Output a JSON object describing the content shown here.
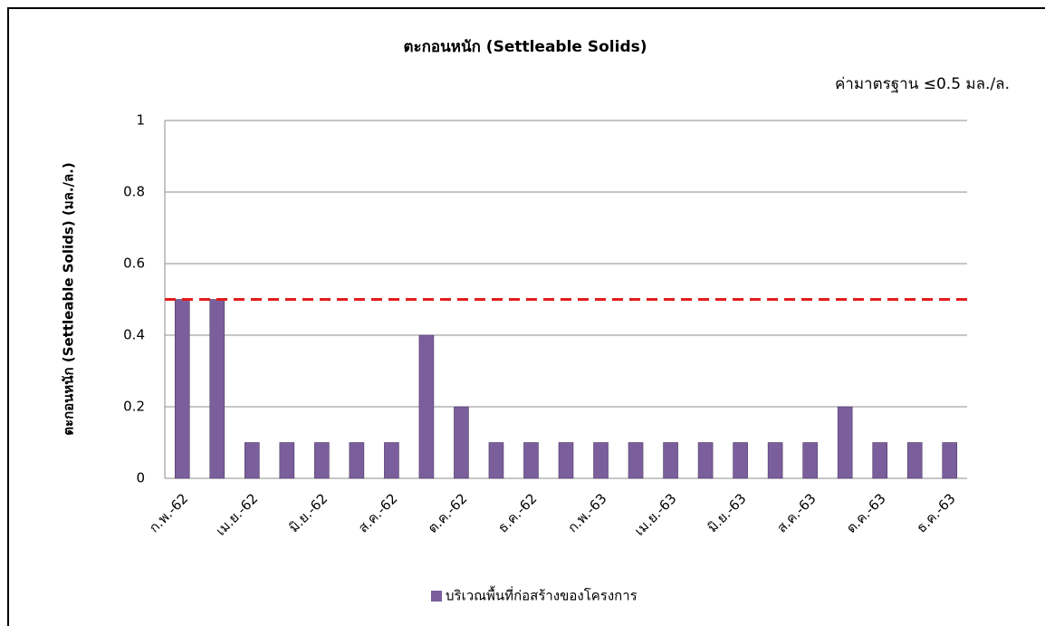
{
  "chart_data": {
    "type": "bar",
    "title": "ตะกอนหนัก (Settleable Solids)",
    "annotation": "ค่ามาตรฐาน ≤0.5 มล./ล.",
    "ylabel": "ตะกอนหนัก (Settleable Solids) (มล./ล.)",
    "categories": [
      "ก.พ.-62",
      null,
      "เม.ย.-62",
      null,
      "มิ.ย.-62",
      null,
      "ส.ค.-62",
      null,
      "ต.ค.-62",
      null,
      "ธ.ค.-62",
      null,
      "ก.พ.-63",
      null,
      "เม.ย.-63",
      null,
      "มิ.ย.-63",
      null,
      "ส.ค.-63",
      null,
      "ต.ค.-63",
      null,
      "ธ.ค.-63"
    ],
    "series": [
      {
        "name": "บริเวณพื้นที่ก่อสร้างของโครงการ",
        "color": "#7b5f9c",
        "values": [
          0.5,
          0.5,
          0.1,
          0.1,
          0.1,
          0.1,
          0.1,
          0.4,
          0.2,
          0.1,
          0.1,
          0.1,
          0.1,
          0.1,
          0.1,
          0.1,
          0.1,
          0.1,
          0.1,
          0.2,
          0.1,
          0.1,
          0.1
        ]
      }
    ],
    "threshold": 0.5,
    "threshold_color": "#e31c1c",
    "ylim": [
      0,
      1
    ],
    "yticks": [
      0,
      0.2,
      0.4,
      0.6,
      0.8,
      1
    ],
    "grid": true,
    "legend": "bottom"
  }
}
